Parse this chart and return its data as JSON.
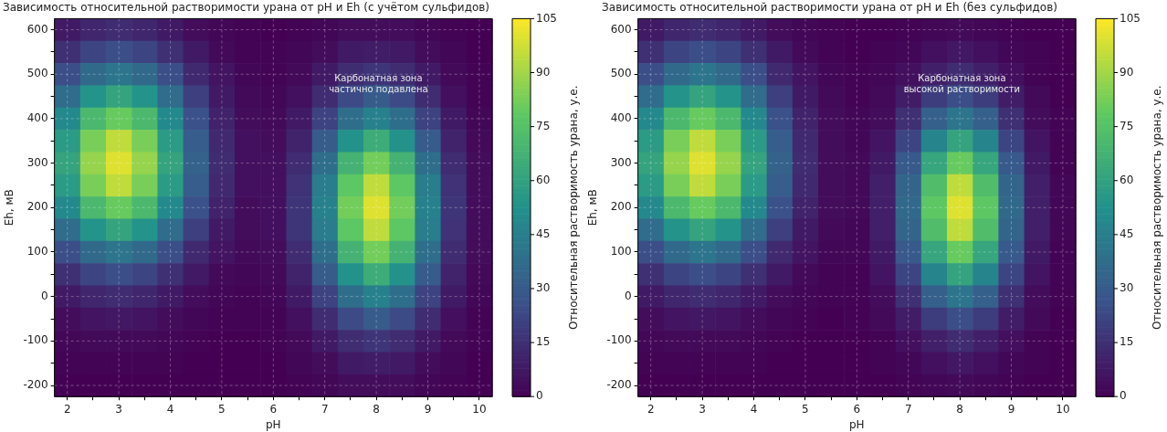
{
  "chart_data": [
    {
      "type": "heatmap",
      "title": "Зависимость относительной растворимости урана от pH и Eh (с учётом сульфидов)",
      "xlabel": "pH",
      "ylabel": "Eh, мВ",
      "clabel": "Относительная растворимость урана, у.е.",
      "categories": [
        "2",
        null,
        "3",
        null,
        "4",
        null,
        "5",
        null,
        "6",
        null,
        "7",
        null,
        "8",
        null,
        "9",
        null,
        "10"
      ],
      "y_categories": [
        "600",
        null,
        "500",
        null,
        "400",
        null,
        "300",
        null,
        "200",
        null,
        "100",
        null,
        "0",
        null,
        "-100",
        null,
        "-200"
      ],
      "cells": [
        [
          8,
          12,
          14,
          12,
          8,
          4,
          2,
          1,
          0,
          1,
          2,
          4,
          4,
          4,
          2,
          1,
          0
        ],
        [
          15,
          22,
          25,
          22,
          15,
          8,
          3,
          1,
          1,
          2,
          4,
          8,
          9,
          8,
          4,
          2,
          0
        ],
        [
          25,
          36,
          41,
          36,
          25,
          13,
          6,
          2,
          1,
          3,
          8,
          14,
          17,
          14,
          8,
          3,
          1
        ],
        [
          37,
          54,
          61,
          54,
          37,
          20,
          8,
          3,
          2,
          5,
          14,
          24,
          30,
          24,
          14,
          5,
          1
        ],
        [
          49,
          71,
          80,
          71,
          49,
          26,
          11,
          4,
          3,
          8,
          21,
          38,
          46,
          38,
          21,
          8,
          2
        ],
        [
          57,
          83,
          95,
          83,
          57,
          31,
          13,
          5,
          4,
          11,
          30,
          53,
          65,
          53,
          30,
          11,
          3
        ],
        [
          61,
          88,
          100,
          88,
          61,
          33,
          14,
          5,
          5,
          14,
          38,
          68,
          82,
          68,
          38,
          14,
          4
        ],
        [
          57,
          83,
          95,
          83,
          57,
          31,
          13,
          5,
          5,
          16,
          44,
          78,
          95,
          78,
          44,
          16,
          4
        ],
        [
          49,
          71,
          80,
          71,
          49,
          26,
          11,
          4,
          5,
          17,
          46,
          82,
          100,
          82,
          46,
          17,
          4
        ],
        [
          37,
          54,
          61,
          54,
          37,
          20,
          8,
          4,
          5,
          17,
          44,
          78,
          95,
          78,
          44,
          16,
          4
        ],
        [
          25,
          36,
          41,
          36,
          25,
          13,
          6,
          3,
          4,
          14,
          38,
          68,
          82,
          68,
          38,
          14,
          4
        ],
        [
          15,
          22,
          25,
          22,
          15,
          8,
          3,
          2,
          3,
          11,
          30,
          53,
          65,
          53,
          30,
          11,
          3
        ],
        [
          8,
          12,
          14,
          12,
          8,
          4,
          2,
          1,
          2,
          8,
          21,
          38,
          46,
          38,
          21,
          8,
          2
        ],
        [
          4,
          6,
          7,
          6,
          4,
          2,
          1,
          1,
          1,
          5,
          14,
          24,
          30,
          24,
          14,
          5,
          1
        ],
        [
          2,
          3,
          3,
          3,
          2,
          1,
          0,
          0,
          1,
          3,
          8,
          14,
          17,
          14,
          8,
          3,
          1
        ],
        [
          1,
          1,
          1,
          1,
          1,
          0,
          0,
          0,
          0,
          2,
          4,
          8,
          9,
          8,
          4,
          2,
          0
        ],
        [
          0,
          0,
          0,
          0,
          0,
          0,
          0,
          0,
          0,
          1,
          2,
          4,
          4,
          4,
          2,
          1,
          0
        ]
      ],
      "clim": [
        0,
        105
      ],
      "cticks": [
        0,
        15,
        30,
        45,
        60,
        75,
        90,
        105
      ],
      "grid": true,
      "annotations": [
        "Карбонатная зона\nчастично подавлена"
      ]
    },
    {
      "type": "heatmap",
      "title": "Зависимость относительной растворимости урана от pH и Eh (без сульфидов)",
      "xlabel": "pH",
      "ylabel": "Eh, мВ",
      "clabel": "Относительная растворимость урана, у.е.",
      "categories": [
        "2",
        null,
        "3",
        null,
        "4",
        null,
        "5",
        null,
        "6",
        null,
        "7",
        null,
        "8",
        null,
        "9",
        null,
        "10"
      ],
      "y_categories": [
        "600",
        null,
        "500",
        null,
        "400",
        null,
        "300",
        null,
        "200",
        null,
        "100",
        null,
        "0",
        null,
        "-100",
        null,
        "-200"
      ],
      "cells": [
        [
          8,
          12,
          14,
          12,
          8,
          4,
          2,
          1,
          0,
          0,
          1,
          2,
          3,
          2,
          1,
          0,
          0
        ],
        [
          15,
          22,
          25,
          22,
          15,
          8,
          3,
          1,
          0,
          1,
          2,
          5,
          7,
          5,
          2,
          1,
          0
        ],
        [
          25,
          36,
          41,
          36,
          25,
          13,
          6,
          2,
          1,
          2,
          5,
          10,
          14,
          10,
          5,
          1,
          0
        ],
        [
          37,
          54,
          61,
          54,
          37,
          20,
          8,
          3,
          1,
          3,
          9,
          19,
          25,
          19,
          9,
          3,
          0
        ],
        [
          49,
          71,
          80,
          71,
          49,
          26,
          11,
          4,
          2,
          4,
          15,
          32,
          41,
          32,
          15,
          4,
          1
        ],
        [
          57,
          83,
          95,
          83,
          57,
          31,
          13,
          4,
          2,
          6,
          22,
          47,
          61,
          47,
          22,
          6,
          1
        ],
        [
          61,
          88,
          100,
          88,
          61,
          33,
          14,
          4,
          3,
          8,
          29,
          62,
          80,
          62,
          29,
          8,
          1
        ],
        [
          57,
          83,
          95,
          83,
          57,
          31,
          13,
          4,
          3,
          10,
          34,
          73,
          95,
          73,
          34,
          10,
          2
        ],
        [
          49,
          71,
          80,
          71,
          49,
          26,
          11,
          4,
          3,
          10,
          36,
          78,
          100,
          78,
          36,
          10,
          2
        ],
        [
          37,
          54,
          61,
          54,
          37,
          20,
          8,
          3,
          2,
          10,
          34,
          73,
          95,
          73,
          34,
          10,
          2
        ],
        [
          25,
          36,
          41,
          36,
          25,
          13,
          6,
          2,
          2,
          8,
          29,
          62,
          80,
          62,
          29,
          8,
          1
        ],
        [
          15,
          22,
          25,
          22,
          15,
          8,
          3,
          1,
          1,
          6,
          22,
          47,
          61,
          47,
          22,
          6,
          1
        ],
        [
          8,
          12,
          14,
          12,
          8,
          4,
          2,
          1,
          1,
          4,
          15,
          32,
          41,
          32,
          15,
          4,
          1
        ],
        [
          4,
          6,
          7,
          6,
          4,
          2,
          1,
          0,
          1,
          3,
          9,
          19,
          25,
          19,
          9,
          3,
          0
        ],
        [
          2,
          3,
          3,
          3,
          2,
          1,
          0,
          0,
          0,
          1,
          5,
          10,
          14,
          10,
          5,
          1,
          0
        ],
        [
          1,
          1,
          1,
          1,
          1,
          0,
          0,
          0,
          0,
          1,
          2,
          5,
          7,
          5,
          2,
          1,
          0
        ],
        [
          0,
          0,
          0,
          0,
          0,
          0,
          0,
          0,
          0,
          0,
          1,
          2,
          3,
          2,
          1,
          0,
          0
        ]
      ],
      "clim": [
        0,
        105
      ],
      "cticks": [
        0,
        15,
        30,
        45,
        60,
        75,
        90,
        105
      ],
      "grid": true,
      "annotations": [
        "Карбонатная зона\nвысокой растворимости"
      ]
    }
  ]
}
